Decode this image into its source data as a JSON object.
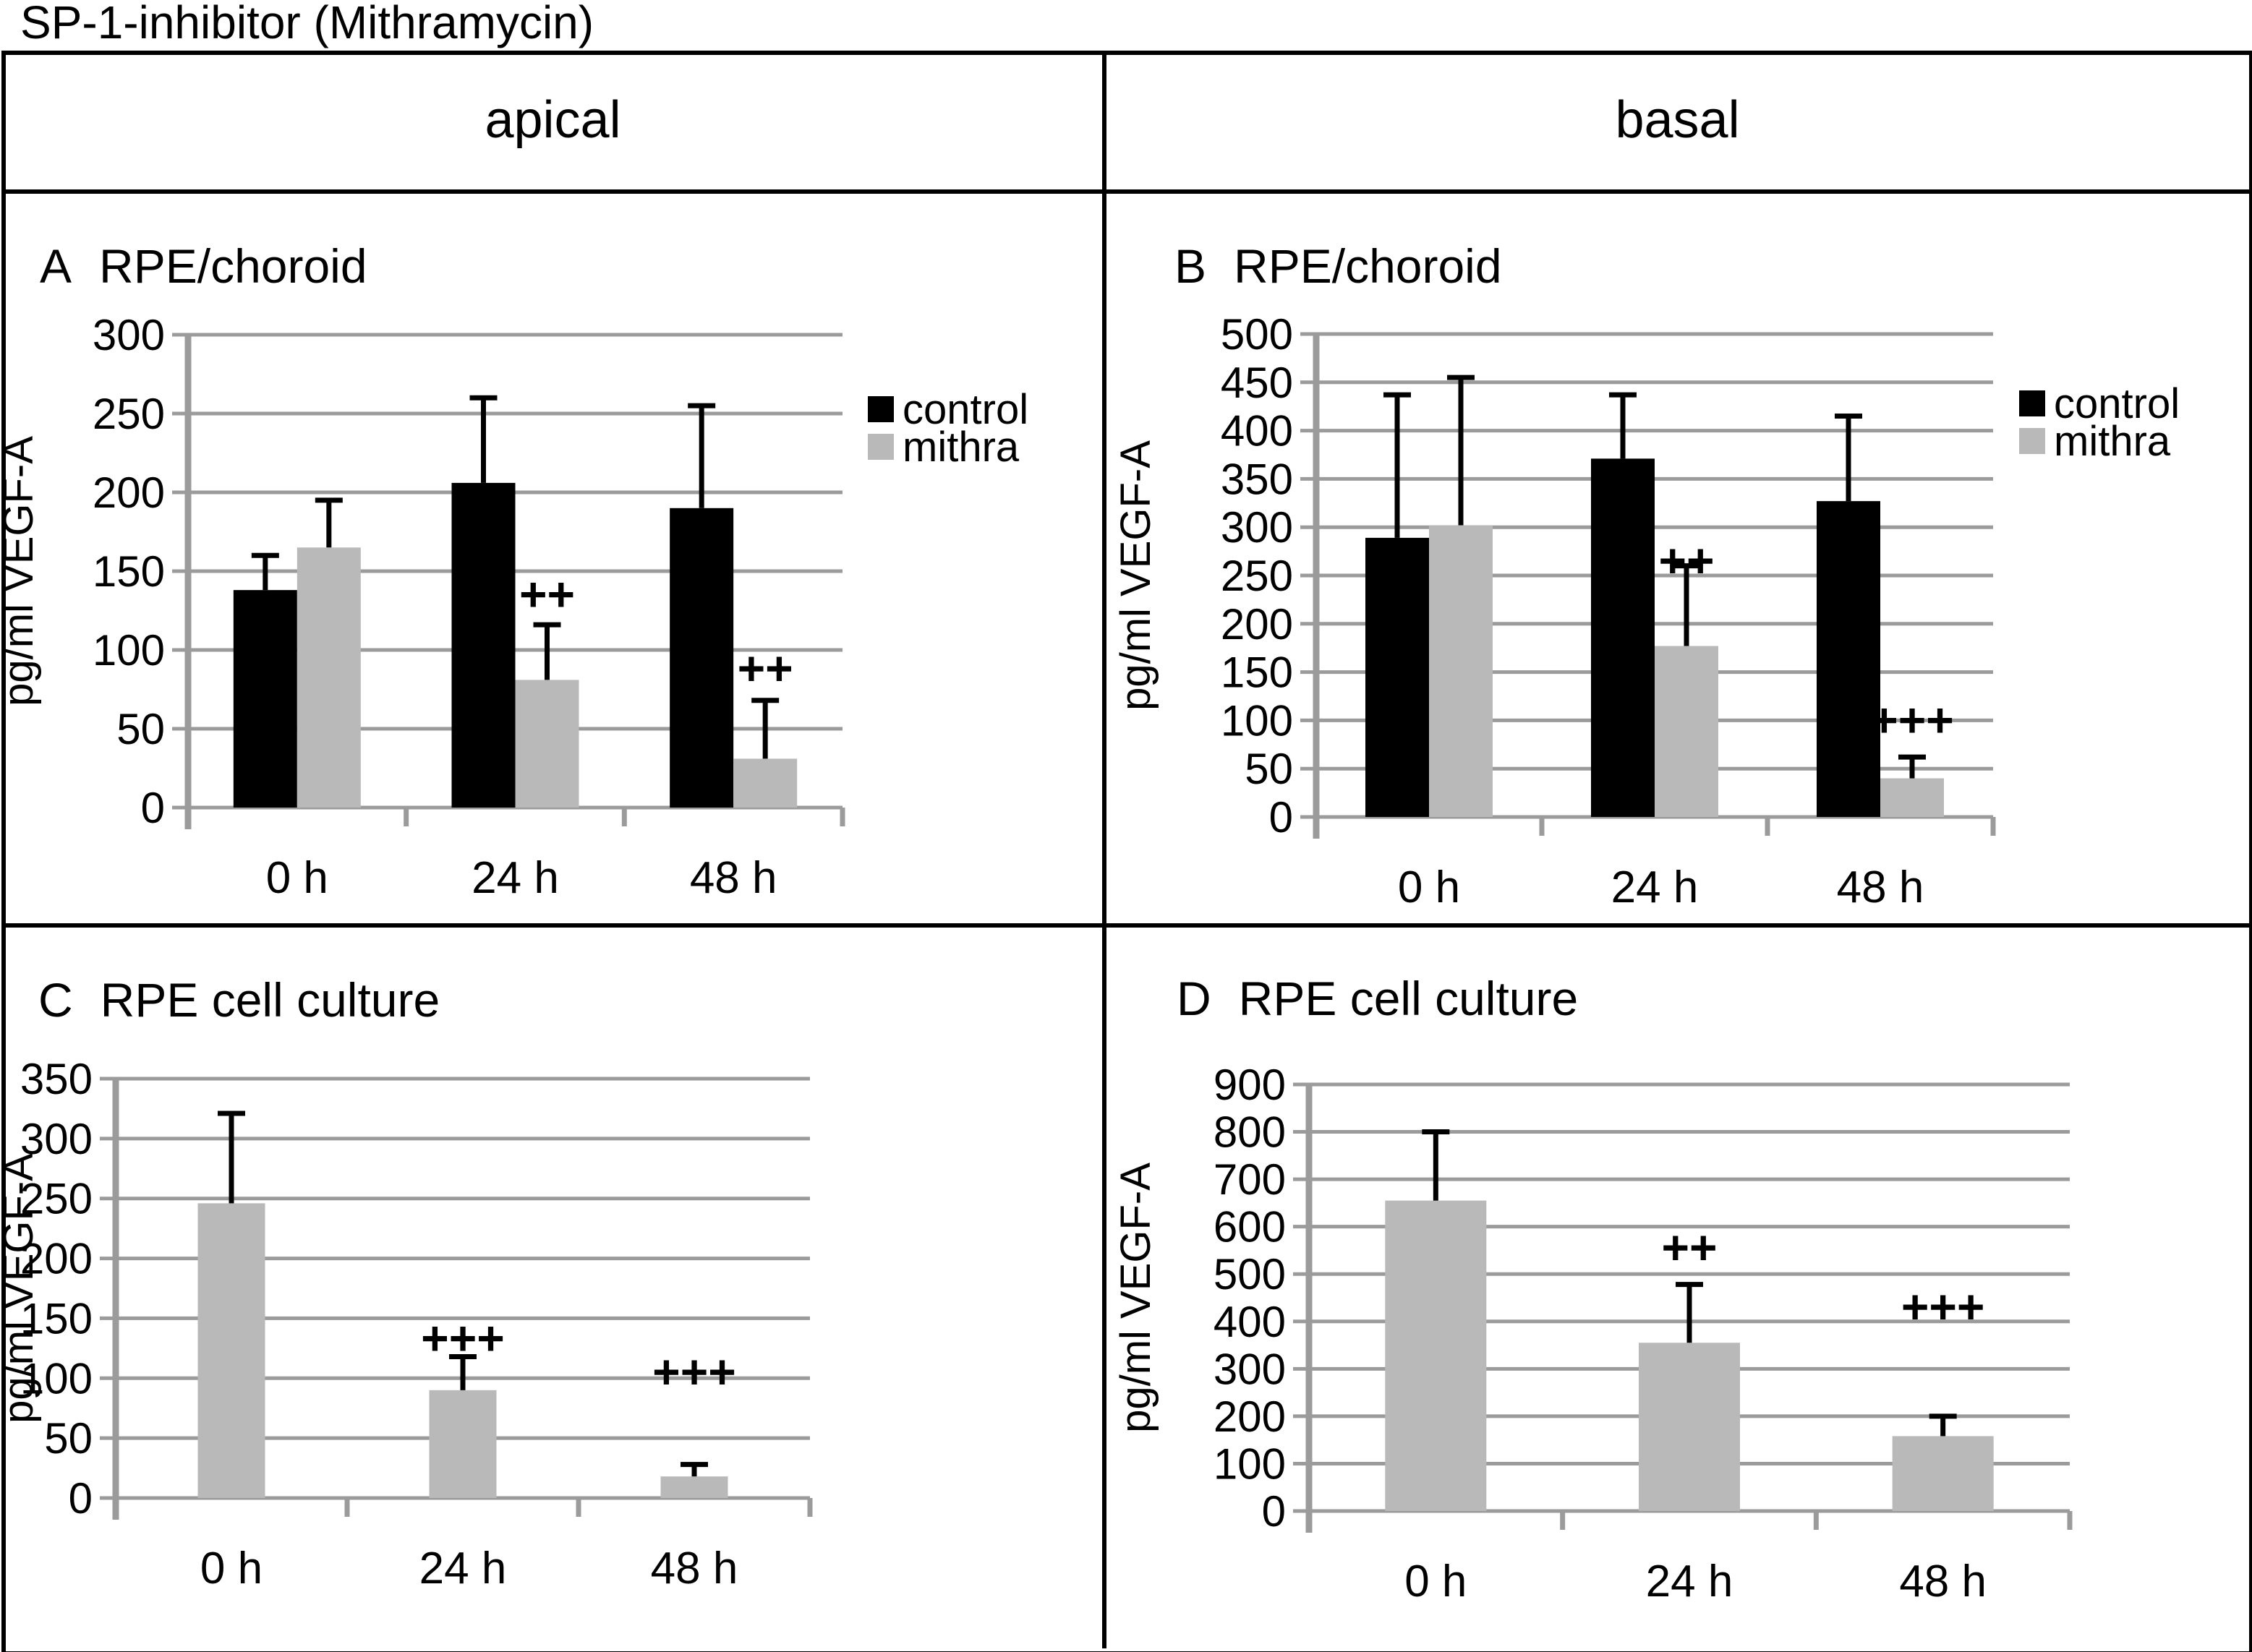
{
  "figure": {
    "title": "SP-1-inhibitor (Mithramycin)"
  },
  "columns": [
    {
      "label": "apical"
    },
    {
      "label": "basal"
    }
  ],
  "colors": {
    "control": "#000000",
    "mithra": "#b9b9b9",
    "grid": "#9b9b9b",
    "text": "#000000"
  },
  "chart_data": [
    {
      "panel": "A",
      "title": "RPE/choroid",
      "type": "bar",
      "ylabel": "pg/ml VEGF-A",
      "ylim": [
        0,
        300
      ],
      "ystep": 50,
      "categories": [
        "0 h",
        "24 h",
        "48 h"
      ],
      "series": [
        {
          "name": "control",
          "color": "#000000",
          "values": [
            138,
            206,
            190
          ],
          "err_top": [
            160,
            260,
            255
          ],
          "sig": [
            "",
            "",
            ""
          ],
          "sig_level": [
            0,
            0,
            0
          ]
        },
        {
          "name": "mithra",
          "color": "#b9b9b9",
          "values": [
            165,
            81,
            31
          ],
          "err_top": [
            195,
            116,
            68
          ],
          "sig": [
            "",
            "++",
            "++"
          ],
          "sig_level": [
            0,
            135,
            88
          ]
        }
      ],
      "legend": {
        "show": true,
        "items": [
          "control",
          "mithra"
        ]
      },
      "grid": true
    },
    {
      "panel": "B",
      "title": "RPE/choroid",
      "type": "bar",
      "ylabel": "pg/ml VEGF-A",
      "ylim": [
        0,
        500
      ],
      "ystep": 50,
      "categories": [
        "0 h",
        "24 h",
        "48 h"
      ],
      "series": [
        {
          "name": "control",
          "color": "#000000",
          "values": [
            289,
            371,
            327
          ],
          "err_top": [
            437,
            437,
            415
          ],
          "sig": [
            "",
            "",
            ""
          ],
          "sig_level": [
            0,
            0,
            0
          ]
        },
        {
          "name": "mithra",
          "color": "#b9b9b9",
          "values": [
            302,
            177,
            40
          ],
          "err_top": [
            455,
            260,
            62
          ],
          "sig": [
            "",
            "++",
            "+++"
          ],
          "sig_level": [
            0,
            265,
            100
          ]
        }
      ],
      "legend": {
        "show": true,
        "items": [
          "control",
          "mithra"
        ]
      },
      "grid": true
    },
    {
      "panel": "C",
      "title": "RPE cell culture",
      "type": "bar",
      "ylabel": "pg/ml VEGF-A",
      "ylim": [
        0,
        350
      ],
      "ystep": 50,
      "categories": [
        "0 h",
        "24 h",
        "48 h"
      ],
      "series": [
        {
          "name": "mithra",
          "color": "#b9b9b9",
          "values": [
            246,
            90,
            18
          ],
          "err_top": [
            321,
            118,
            28
          ],
          "sig": [
            "",
            "+++",
            "+++"
          ],
          "sig_level": [
            0,
            133,
            105
          ]
        }
      ],
      "legend": {
        "show": false,
        "items": []
      },
      "grid": true
    },
    {
      "panel": "D",
      "title": "RPE cell culture",
      "type": "bar",
      "ylabel": "pg/ml VEGF-A",
      "ylim": [
        0,
        900
      ],
      "ystep": 100,
      "categories": [
        "0 h",
        "24 h",
        "48 h"
      ],
      "series": [
        {
          "name": "mithra",
          "color": "#b9b9b9",
          "values": [
            655,
            355,
            158
          ],
          "err_top": [
            800,
            478,
            200
          ],
          "sig": [
            "",
            "++",
            "+++"
          ],
          "sig_level": [
            0,
            555,
            430
          ]
        }
      ],
      "legend": {
        "show": false,
        "items": []
      },
      "grid": true
    }
  ]
}
